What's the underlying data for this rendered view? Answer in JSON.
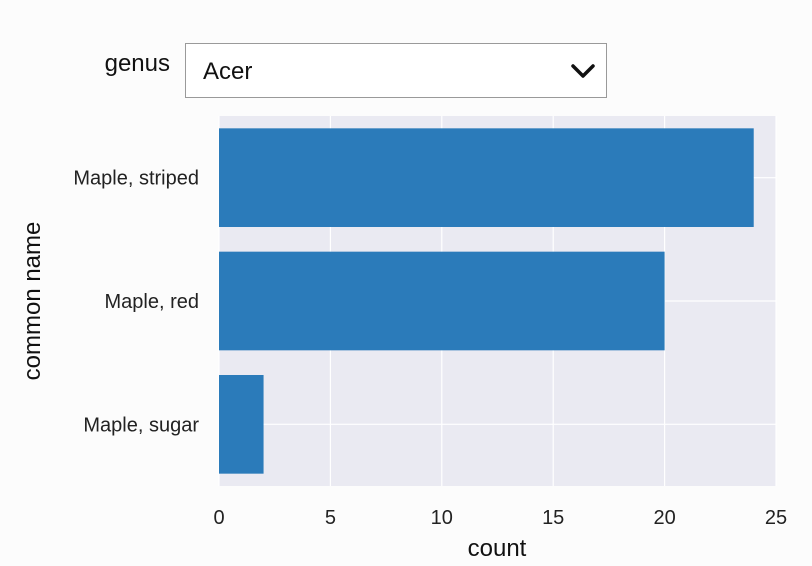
{
  "widget": {
    "label": "genus",
    "selected": "Acer",
    "icon": "chevron-down-icon"
  },
  "chart_data": {
    "type": "bar",
    "orientation": "horizontal",
    "categories": [
      "Maple, striped",
      "Maple, red",
      "Maple, sugar"
    ],
    "values": [
      24,
      20,
      2
    ],
    "xlabel": "count",
    "ylabel": "common name",
    "xlim": [
      0,
      25
    ],
    "xticks": [
      0,
      5,
      10,
      15,
      20,
      25
    ],
    "grid": true,
    "colors": {
      "bar": "#2b7bba",
      "plot_background": "#eaeaf2",
      "grid": "#ffffff"
    }
  }
}
